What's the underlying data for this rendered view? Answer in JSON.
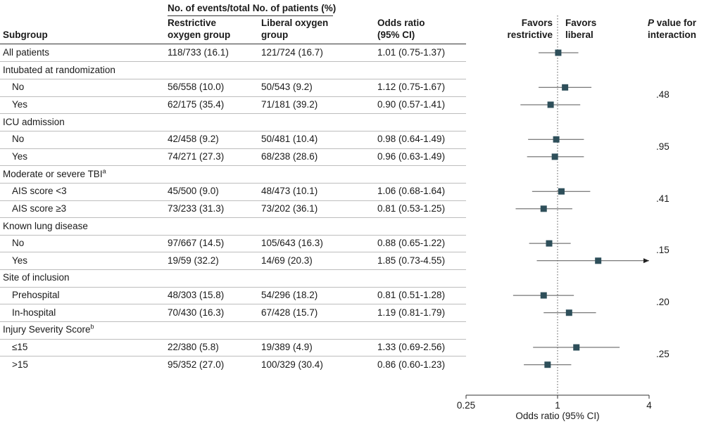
{
  "header": {
    "events_group": "No. of events/total No. of patients (%)",
    "subgroup": "Subgroup",
    "col_restrictive_1": "Restrictive",
    "col_restrictive_2": "oxygen group",
    "col_liberal_1": "Liberal oxygen",
    "col_liberal_2": "group",
    "col_or_1": "Odds ratio",
    "col_or_2": "(95% CI)",
    "favors_restrictive_1": "Favors",
    "favors_restrictive_2": "restrictive",
    "favors_liberal_1": "Favors",
    "favors_liberal_2": "liberal",
    "pval_1_italic": "P",
    "pval_1_rest": " value for",
    "pval_2": "interaction"
  },
  "rows": [
    {
      "type": "data",
      "label": "All patients",
      "indent": false,
      "restrictive": "118/733 (16.1)",
      "liberal": "121/724 (16.7)",
      "or_text": "1.01 (0.75-1.37)"
    },
    {
      "type": "header",
      "label": "Intubated at randomization"
    },
    {
      "type": "data",
      "label": "No",
      "indent": true,
      "restrictive": "56/558 (10.0)",
      "liberal": "50/543 (9.2)",
      "or_text": "1.12 (0.75-1.67)"
    },
    {
      "type": "data",
      "label": "Yes",
      "indent": true,
      "restrictive": "62/175 (35.4)",
      "liberal": "71/181 (39.2)",
      "or_text": "0.90 (0.57-1.41)"
    },
    {
      "type": "header",
      "label": "ICU admission"
    },
    {
      "type": "data",
      "label": "No",
      "indent": true,
      "restrictive": "42/458 (9.2)",
      "liberal": "50/481 (10.4)",
      "or_text": "0.98 (0.64-1.49)"
    },
    {
      "type": "data",
      "label": "Yes",
      "indent": true,
      "restrictive": "74/271 (27.3)",
      "liberal": "68/238 (28.6)",
      "or_text": "0.96 (0.63-1.49)"
    },
    {
      "type": "header",
      "label": "Moderate or severe TBI",
      "sup": "a"
    },
    {
      "type": "data",
      "label": "AIS score <3",
      "indent": true,
      "restrictive": "45/500 (9.0)",
      "liberal": "48/473 (10.1)",
      "or_text": "1.06 (0.68-1.64)"
    },
    {
      "type": "data",
      "label": "AIS score ≥3",
      "indent": true,
      "restrictive": "73/233 (31.3)",
      "liberal": "73/202 (36.1)",
      "or_text": "0.81 (0.53-1.25)"
    },
    {
      "type": "header",
      "label": "Known lung disease"
    },
    {
      "type": "data",
      "label": "No",
      "indent": true,
      "restrictive": "97/667 (14.5)",
      "liberal": "105/643 (16.3)",
      "or_text": "0.88 (0.65-1.22)"
    },
    {
      "type": "data",
      "label": "Yes",
      "indent": true,
      "restrictive": "19/59 (32.2)",
      "liberal": "14/69 (20.3)",
      "or_text": "1.85 (0.73-4.55)"
    },
    {
      "type": "header",
      "label": "Site of inclusion"
    },
    {
      "type": "data",
      "label": "Prehospital",
      "indent": true,
      "restrictive": "48/303 (15.8)",
      "liberal": "54/296 (18.2)",
      "or_text": "0.81 (0.51-1.28)"
    },
    {
      "type": "data",
      "label": "In-hospital",
      "indent": true,
      "restrictive": "70/430 (16.3)",
      "liberal": "67/428 (15.7)",
      "or_text": "1.19 (0.81-1.79)"
    },
    {
      "type": "header",
      "label": "Injury Severity Score",
      "sup": "b"
    },
    {
      "type": "data",
      "label": "≤15",
      "indent": true,
      "restrictive": "22/380 (5.8)",
      "liberal": "19/389 (4.9)",
      "or_text": "1.33 (0.69-2.56)"
    },
    {
      "type": "data",
      "label": ">15",
      "indent": true,
      "restrictive": "95/352 (27.0)",
      "liberal": "100/329 (30.4)",
      "or_text": "0.86 (0.60-1.23)"
    }
  ],
  "p_values": [
    {
      "text": ".48",
      "rows": [
        2,
        3
      ]
    },
    {
      "text": ".95",
      "rows": [
        5,
        6
      ]
    },
    {
      "text": ".41",
      "rows": [
        8,
        9
      ]
    },
    {
      "text": ".15",
      "rows": [
        11,
        12
      ]
    },
    {
      "text": ".20",
      "rows": [
        14,
        15
      ]
    },
    {
      "text": ".25",
      "rows": [
        17,
        18
      ]
    }
  ],
  "chart_data": {
    "type": "forest",
    "x_scale": "log2",
    "xlim": [
      0.25,
      4
    ],
    "xticks": [
      0.25,
      1,
      4
    ],
    "xtick_labels": [
      "0.25",
      "1",
      "4"
    ],
    "xlabel": "Odds ratio (95% CI)",
    "reference_line": 1,
    "marker_color": "#2e4f5a",
    "points": [
      {
        "row": 0,
        "or": 1.01,
        "lo": 0.75,
        "hi": 1.37
      },
      {
        "row": 2,
        "or": 1.12,
        "lo": 0.75,
        "hi": 1.67
      },
      {
        "row": 3,
        "or": 0.9,
        "lo": 0.57,
        "hi": 1.41
      },
      {
        "row": 5,
        "or": 0.98,
        "lo": 0.64,
        "hi": 1.49
      },
      {
        "row": 6,
        "or": 0.96,
        "lo": 0.63,
        "hi": 1.49
      },
      {
        "row": 8,
        "or": 1.06,
        "lo": 0.68,
        "hi": 1.64
      },
      {
        "row": 9,
        "or": 0.81,
        "lo": 0.53,
        "hi": 1.25
      },
      {
        "row": 11,
        "or": 0.88,
        "lo": 0.65,
        "hi": 1.22
      },
      {
        "row": 12,
        "or": 1.85,
        "lo": 0.73,
        "hi": 4.55,
        "arrow_right": true
      },
      {
        "row": 14,
        "or": 0.81,
        "lo": 0.51,
        "hi": 1.28
      },
      {
        "row": 15,
        "or": 1.19,
        "lo": 0.81,
        "hi": 1.79
      },
      {
        "row": 17,
        "or": 1.33,
        "lo": 0.69,
        "hi": 2.56
      },
      {
        "row": 18,
        "or": 0.86,
        "lo": 0.6,
        "hi": 1.23
      }
    ]
  }
}
